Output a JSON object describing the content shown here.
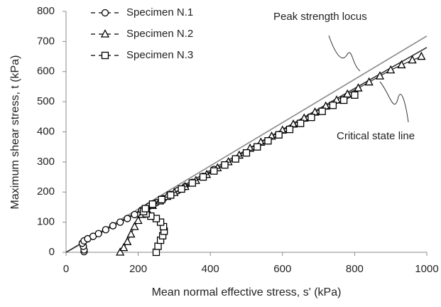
{
  "chart_data": {
    "type": "scatter",
    "xlabel": "Mean normal effective stress, s' (kPa)",
    "ylabel": "Maximum shear stress, t (kPa)",
    "xlim": [
      0,
      1000
    ],
    "xticks": [
      0,
      200,
      400,
      600,
      800,
      1000
    ],
    "ylim": [
      0,
      800
    ],
    "yticks": [
      0,
      100,
      200,
      300,
      400,
      500,
      600,
      700,
      800
    ],
    "legend": "upper left",
    "series": [
      {
        "name": "Specimen N.1",
        "marker": "circle",
        "color": "#000000",
        "x": [
          50,
          50,
          48,
          45,
          50,
          60,
          75,
          90,
          110,
          130,
          150,
          170,
          190,
          210,
          230,
          250,
          270,
          290,
          310,
          330,
          350,
          380,
          410
        ],
        "values": [
          2,
          8,
          20,
          30,
          38,
          45,
          53,
          62,
          75,
          88,
          100,
          112,
          125,
          140,
          153,
          165,
          178,
          192,
          205,
          218,
          232,
          252,
          275
        ]
      },
      {
        "name": "Specimen N.2",
        "marker": "triangle",
        "color": "#000000",
        "x": [
          150,
          160,
          170,
          180,
          190,
          200,
          210,
          225,
          240,
          260,
          280,
          300,
          330,
          360,
          390,
          420,
          450,
          480,
          510,
          540,
          570,
          600,
          630,
          660,
          690,
          720,
          750,
          780,
          810,
          840,
          870,
          900,
          930,
          960,
          985
        ],
        "values": [
          0,
          15,
          35,
          60,
          85,
          105,
          125,
          140,
          155,
          170,
          185,
          198,
          218,
          238,
          258,
          280,
          300,
          322,
          345,
          365,
          385,
          405,
          425,
          445,
          465,
          485,
          505,
          525,
          545,
          565,
          585,
          605,
          622,
          638,
          650
        ]
      },
      {
        "name": "Specimen N.3",
        "marker": "square",
        "color": "#000000",
        "x": [
          250,
          255,
          262,
          268,
          272,
          270,
          262,
          250,
          235,
          222,
          215,
          220,
          240,
          265,
          290,
          320,
          350,
          380,
          410,
          440,
          470,
          500,
          530,
          560,
          590,
          620,
          650,
          680,
          710,
          740,
          770,
          800
        ],
        "values": [
          0,
          20,
          40,
          55,
          70,
          85,
          100,
          112,
          120,
          128,
          135,
          145,
          160,
          175,
          190,
          210,
          230,
          250,
          270,
          290,
          310,
          330,
          350,
          370,
          390,
          408,
          428,
          448,
          468,
          488,
          505,
          522
        ]
      }
    ],
    "reference_lines": [
      {
        "label": "Peak strength locus",
        "color": "#888888",
        "x": [
          0,
          1000
        ],
        "values": [
          0,
          718
        ]
      },
      {
        "label": "Critical state line",
        "color": "#333333",
        "x": [
          0,
          1000
        ],
        "values": [
          0,
          680
        ]
      }
    ]
  }
}
